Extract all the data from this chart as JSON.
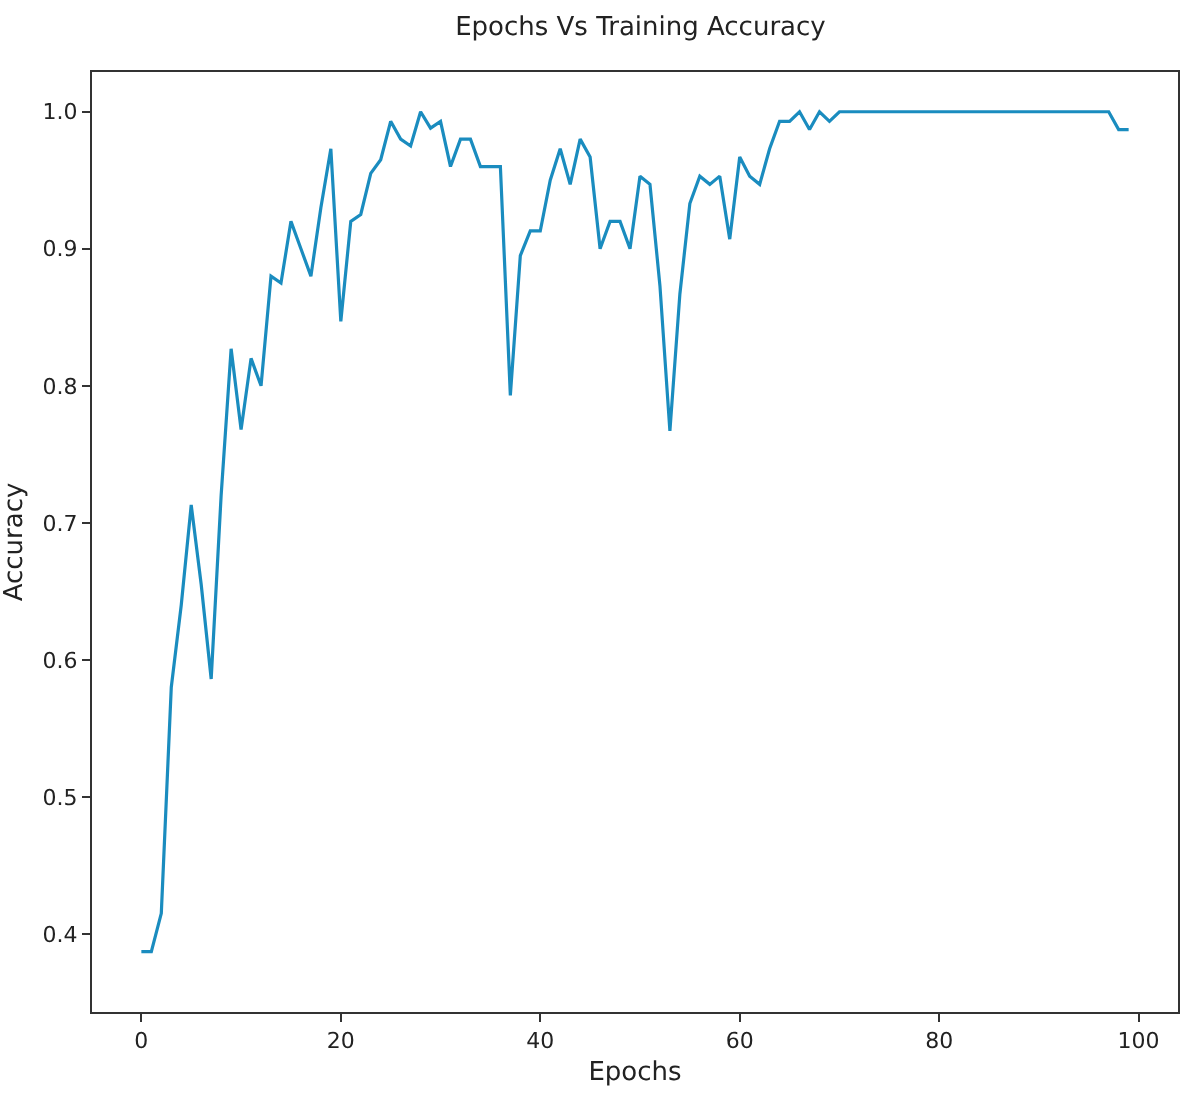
{
  "chart_data": {
    "type": "line",
    "title": "Epochs Vs Training Accuracy",
    "xlabel": "Epochs",
    "ylabel": "Accuracy",
    "x": [
      0,
      1,
      2,
      3,
      4,
      5,
      6,
      7,
      8,
      9,
      10,
      11,
      12,
      13,
      14,
      15,
      16,
      17,
      18,
      19,
      20,
      21,
      22,
      23,
      24,
      25,
      26,
      27,
      28,
      29,
      30,
      31,
      32,
      33,
      34,
      35,
      36,
      37,
      38,
      39,
      40,
      41,
      42,
      43,
      44,
      45,
      46,
      47,
      48,
      49,
      50,
      51,
      52,
      53,
      54,
      55,
      56,
      57,
      58,
      59,
      60,
      61,
      62,
      63,
      64,
      65,
      66,
      67,
      68,
      69,
      70,
      71,
      72,
      73,
      74,
      75,
      76,
      77,
      78,
      79,
      80,
      81,
      82,
      83,
      84,
      85,
      86,
      87,
      88,
      89,
      90,
      91,
      92,
      93,
      94,
      95,
      96,
      97,
      98,
      99
    ],
    "series": [
      {
        "color": "#1a8cbf",
        "values": [
          0.387,
          0.387,
          0.415,
          0.58,
          0.64,
          0.713,
          0.655,
          0.586,
          0.72,
          0.827,
          0.768,
          0.82,
          0.8,
          0.88,
          0.875,
          0.92,
          0.9,
          0.88,
          0.93,
          0.973,
          0.847,
          0.92,
          0.925,
          0.955,
          0.965,
          0.993,
          0.98,
          0.975,
          1.0,
          0.988,
          0.993,
          0.96,
          0.98,
          0.98,
          0.96,
          0.96,
          0.96,
          0.793,
          0.895,
          0.913,
          0.913,
          0.95,
          0.973,
          0.947,
          0.98,
          0.967,
          0.9,
          0.92,
          0.92,
          0.9,
          0.953,
          0.947,
          0.873,
          0.767,
          0.867,
          0.933,
          0.953,
          0.947,
          0.953,
          0.907,
          0.967,
          0.953,
          0.947,
          0.973,
          0.993,
          0.993,
          1.0,
          0.987,
          1.0,
          0.993,
          1.0,
          1.0,
          1.0,
          1.0,
          1.0,
          1.0,
          1.0,
          1.0,
          1.0,
          1.0,
          1.0,
          1.0,
          1.0,
          1.0,
          1.0,
          1.0,
          1.0,
          1.0,
          1.0,
          1.0,
          1.0,
          1.0,
          1.0,
          1.0,
          1.0,
          1.0,
          1.0,
          1.0,
          0.987,
          0.987
        ]
      }
    ],
    "xlim": [
      -4.95,
      103.95
    ],
    "xticks": [
      0,
      20,
      40,
      60,
      80,
      100
    ],
    "ylim": [
      0.343,
      1.029
    ],
    "yticks": [
      0.4,
      0.5,
      0.6,
      0.7,
      0.8,
      0.9,
      {
        "value": 1,
        "label": "1.0"
      }
    ],
    "grid": false,
    "marker": "none",
    "line_style": "solid"
  }
}
